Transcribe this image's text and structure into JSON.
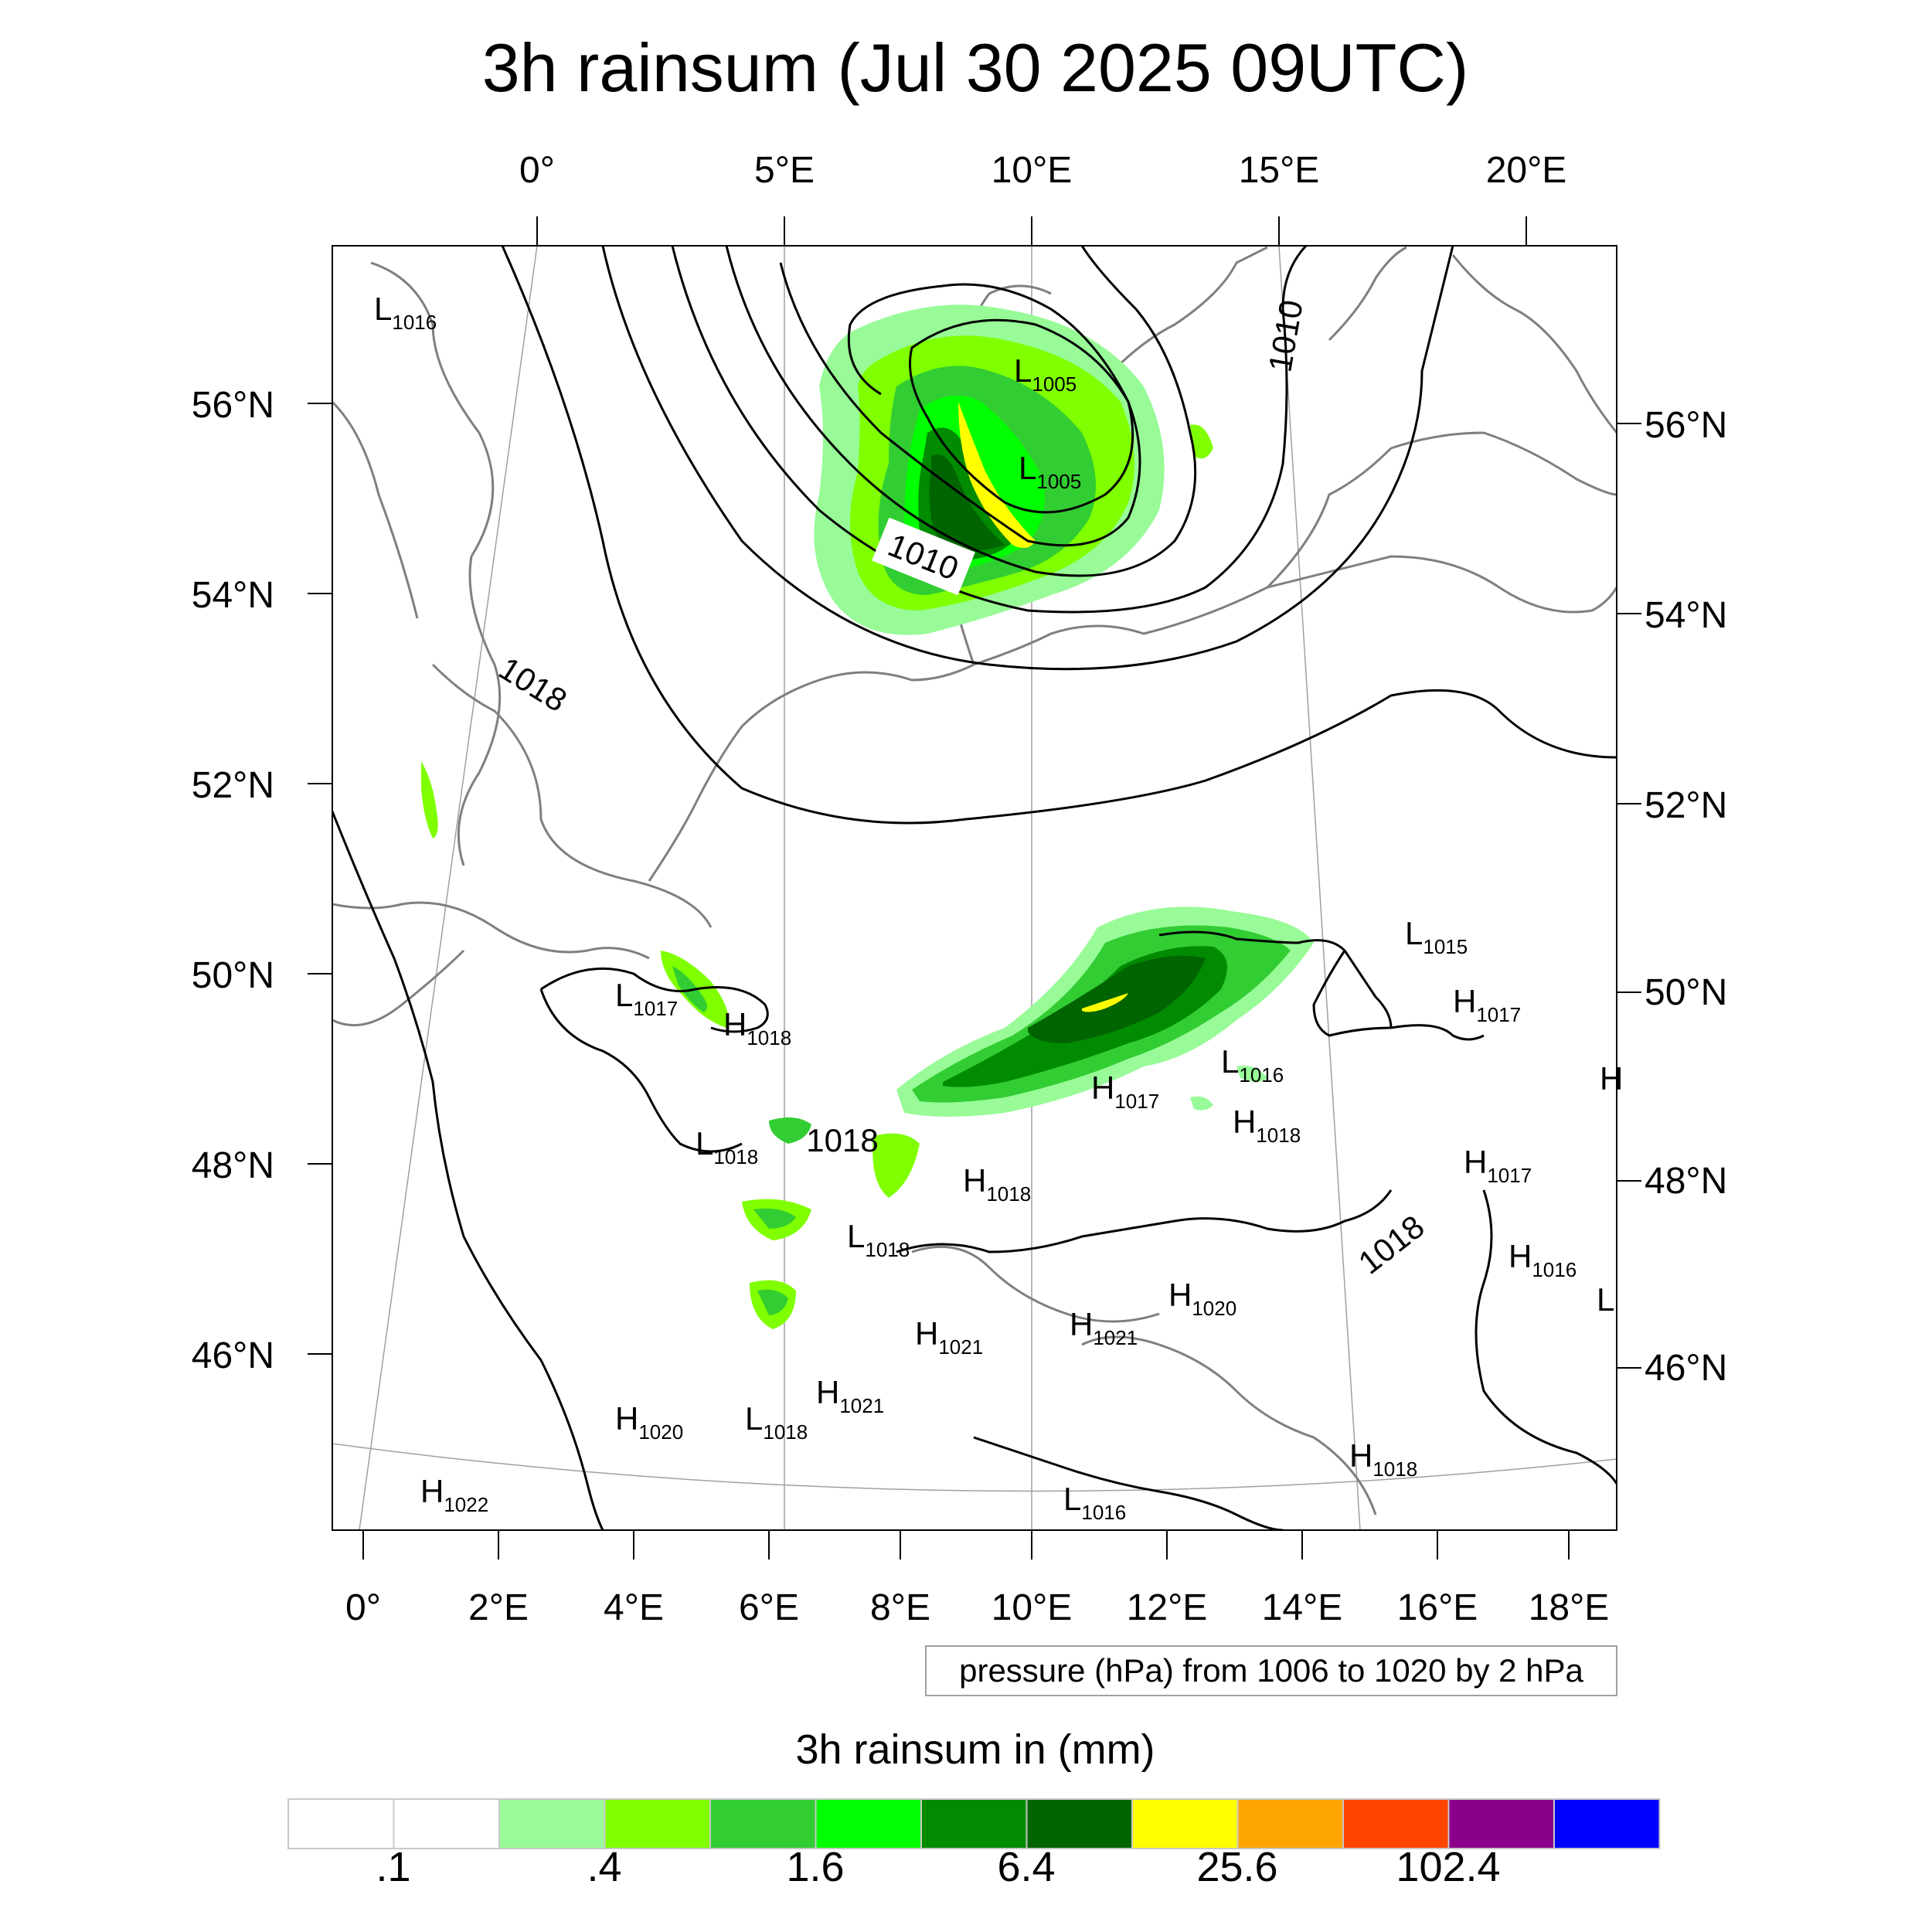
{
  "title": "3h rainsum (Jul 30 2025 09UTC)",
  "top_lon_labels": [
    "0°",
    "5°E",
    "10°E",
    "15°E",
    "20°E"
  ],
  "bottom_lon_labels": [
    "0°",
    "2°E",
    "4°E",
    "6°E",
    "8°E",
    "10°E",
    "12°E",
    "14°E",
    "16°E",
    "18°E"
  ],
  "left_lat_labels": [
    "56°N",
    "54°N",
    "52°N",
    "50°N",
    "48°N",
    "46°N"
  ],
  "right_lat_labels": [
    "56°N",
    "54°N",
    "52°N",
    "50°N",
    "48°N",
    "46°N"
  ],
  "pressure_systems": [
    {
      "type": "L",
      "value": "1016"
    },
    {
      "type": "L",
      "value": "1005"
    },
    {
      "type": "L",
      "value": "1005"
    },
    {
      "type": "L",
      "value": "1015"
    },
    {
      "type": "H",
      "value": "1017"
    },
    {
      "type": "L",
      "value": "1017"
    },
    {
      "type": "H",
      "value": "1018"
    },
    {
      "type": "L",
      "value": "1016"
    },
    {
      "type": "H",
      "value": "1017"
    },
    {
      "type": "H",
      "value": "1018"
    },
    {
      "type": "L",
      "value": "1018"
    },
    {
      "type": "H",
      "value": "1018"
    },
    {
      "type": "H",
      "value": "1017"
    },
    {
      "type": "L",
      "value": "1018"
    },
    {
      "type": "H",
      "value": "1016"
    },
    {
      "type": "H",
      "value": "1020"
    },
    {
      "type": "H",
      "value": "1021"
    },
    {
      "type": "H",
      "value": "1021"
    },
    {
      "type": "H",
      "value": "1020"
    },
    {
      "type": "L",
      "value": "1018"
    },
    {
      "type": "H",
      "value": "1021"
    },
    {
      "type": "H",
      "value": "1018"
    },
    {
      "type": "H",
      "value": "1022"
    },
    {
      "type": "L",
      "value": "1016"
    },
    {
      "type": "H",
      "value": ""
    },
    {
      "type": "L",
      "value": ""
    }
  ],
  "contour_labels": [
    "1010",
    "1010",
    "1018",
    "1018",
    "1018"
  ],
  "contour_info": "pressure (hPa) from 1006 to 1020 by 2 hPa",
  "colorbar": {
    "title": "3h rainsum in (mm)",
    "colors": [
      "#ffffff",
      "#ffffff",
      "#98fb98",
      "#7fff00",
      "#32cd32",
      "#00ff00",
      "#008b00",
      "#006400",
      "#ffff00",
      "#ffa500",
      "#ff4500",
      "#8b008b",
      "#0000ff"
    ],
    "labels": [
      ".1",
      ".4",
      "1.6",
      "6.4",
      "25.6",
      "102.4"
    ]
  }
}
